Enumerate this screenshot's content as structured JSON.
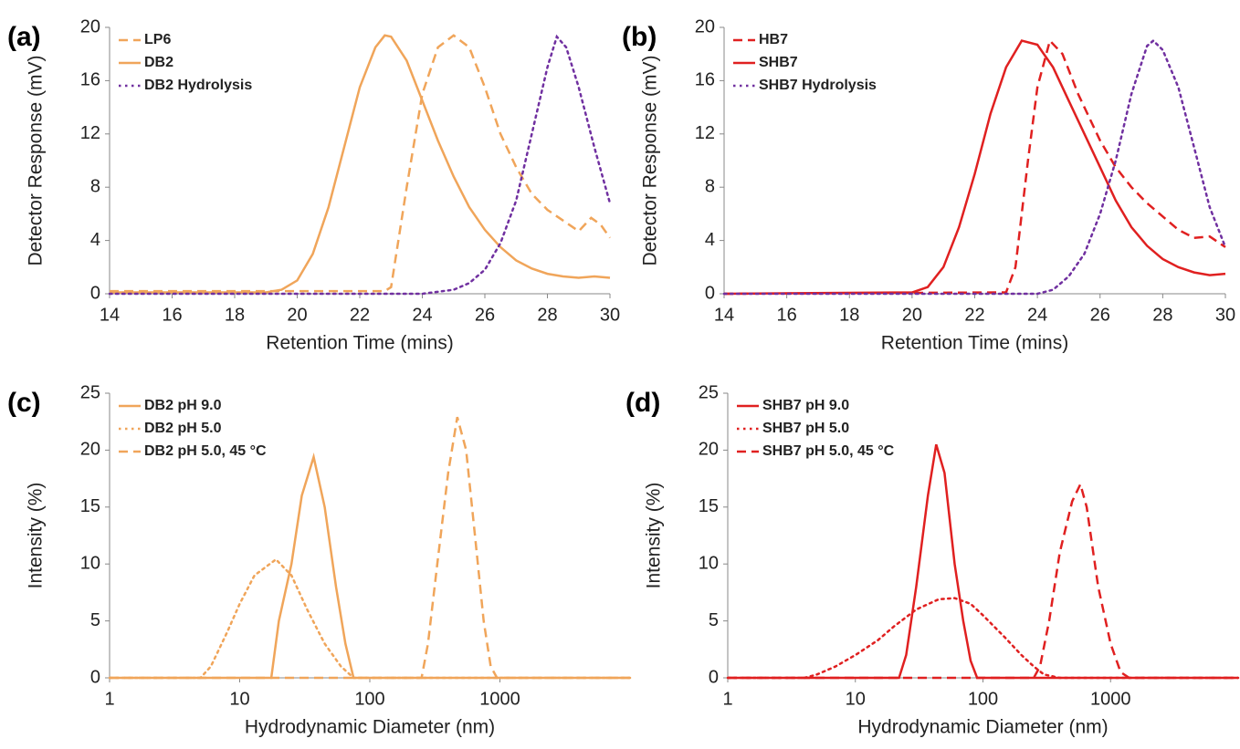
{
  "chart_data": [
    {
      "type": "line",
      "panel_label": "(a)",
      "x_label": "Retention Time (mins)",
      "y_label": "Detector Response (mV)",
      "xlim": [
        14,
        30
      ],
      "xticks": [
        14,
        16,
        18,
        20,
        22,
        24,
        26,
        28,
        30
      ],
      "ylim": [
        0,
        20
      ],
      "yticks": [
        0,
        4,
        8,
        12,
        16,
        20
      ],
      "log_x": false,
      "legend": "upper left",
      "series": [
        {
          "name": "LP6",
          "color": "#F0A55A",
          "linestyle": "dashed",
          "x": [
            14,
            22.8,
            23,
            23.5,
            24,
            24.5,
            25,
            25.5,
            26,
            26.5,
            27,
            27.5,
            28,
            28.5,
            29,
            29.4,
            29.7,
            30
          ],
          "values": [
            0.2,
            0.2,
            0.5,
            8,
            15,
            18.5,
            19.4,
            18.5,
            15.5,
            12,
            9.5,
            7.5,
            6.3,
            5.5,
            4.7,
            5.7,
            5.2,
            4.2
          ]
        },
        {
          "name": "DB2",
          "color": "#F0A55A",
          "linestyle": "solid",
          "x": [
            14,
            19,
            19.5,
            20,
            20.5,
            21,
            21.5,
            22,
            22.5,
            22.8,
            23,
            23.5,
            24,
            24.5,
            25,
            25.5,
            26,
            26.5,
            27,
            27.5,
            28,
            28.5,
            29,
            29.5,
            30
          ],
          "values": [
            0.1,
            0.1,
            0.3,
            1,
            3,
            6.5,
            11,
            15.5,
            18.5,
            19.4,
            19.3,
            17.5,
            14.5,
            11.5,
            8.8,
            6.5,
            4.8,
            3.5,
            2.5,
            1.9,
            1.5,
            1.3,
            1.2,
            1.3,
            1.2
          ]
        },
        {
          "name": "DB2 Hydrolysis",
          "color": "#7030A0",
          "linestyle": "dotted",
          "x": [
            14,
            24,
            25,
            25.5,
            26,
            26.5,
            27,
            27.5,
            28,
            28.3,
            28.6,
            29,
            29.5,
            30
          ],
          "values": [
            0,
            0,
            0.3,
            0.8,
            1.8,
            3.8,
            7,
            12,
            17,
            19.3,
            18.5,
            15.5,
            11,
            6.8
          ]
        }
      ]
    },
    {
      "type": "line",
      "panel_label": "(b)",
      "x_label": "Retention Time (mins)",
      "y_label": "Detector Response (mV)",
      "xlim": [
        14,
        30
      ],
      "xticks": [
        14,
        16,
        18,
        20,
        22,
        24,
        26,
        28,
        30
      ],
      "ylim": [
        0,
        20
      ],
      "yticks": [
        0,
        4,
        8,
        12,
        16,
        20
      ],
      "log_x": false,
      "legend": "upper left",
      "series": [
        {
          "name": "HB7",
          "color": "#E02020",
          "linestyle": "dashed",
          "x": [
            14,
            23,
            23.3,
            23.7,
            24,
            24.4,
            24.8,
            25.3,
            26,
            26.5,
            27,
            27.5,
            28,
            28.5,
            29,
            29.5,
            30
          ],
          "values": [
            0,
            0.1,
            2,
            10,
            15.5,
            19,
            18,
            15,
            11.5,
            9.5,
            8,
            6.8,
            5.8,
            4.8,
            4.2,
            4.3,
            3.5
          ]
        },
        {
          "name": "SHB7",
          "color": "#E02020",
          "linestyle": "solid",
          "x": [
            14,
            20,
            20.5,
            21,
            21.5,
            22,
            22.5,
            23,
            23.5,
            24,
            24.5,
            25,
            25.5,
            26,
            26.5,
            27,
            27.5,
            28,
            28.5,
            29,
            29.5,
            30
          ],
          "values": [
            0,
            0.1,
            0.5,
            2,
            5,
            9,
            13.5,
            17,
            19,
            18.7,
            17,
            14.5,
            12,
            9.5,
            7,
            5,
            3.6,
            2.6,
            2,
            1.6,
            1.4,
            1.5
          ]
        },
        {
          "name": "SHB7 Hydrolysis",
          "color": "#7030A0",
          "linestyle": "dotted",
          "x": [
            14,
            24,
            24.5,
            25,
            25.5,
            26,
            26.5,
            27,
            27.5,
            27.7,
            28,
            28.5,
            29,
            29.5,
            30
          ],
          "values": [
            0,
            0,
            0.3,
            1.3,
            3,
            6,
            10,
            15,
            18.6,
            19,
            18.3,
            15.5,
            11,
            6.5,
            3.5
          ]
        }
      ]
    },
    {
      "type": "line",
      "panel_label": "(c)",
      "x_label": "Hydrodynamic Diameter (nm)",
      "y_label": "Intensity (%)",
      "xlim": [
        1,
        10000
      ],
      "xticks": [
        1,
        10,
        100,
        1000
      ],
      "ylim": [
        0,
        25
      ],
      "yticks": [
        0,
        5,
        10,
        15,
        20,
        25
      ],
      "log_x": true,
      "legend": "upper left",
      "series": [
        {
          "name": "DB2 pH 9.0",
          "color": "#F0A55A",
          "linestyle": "solid",
          "x": [
            1,
            17.5,
            20,
            25,
            30,
            37,
            45,
            55,
            65,
            75,
            10000
          ],
          "values": [
            0,
            0,
            5,
            10,
            16,
            19.4,
            15,
            8,
            3,
            0,
            0
          ]
        },
        {
          "name": "DB2 pH 5.0",
          "color": "#F0A55A",
          "linestyle": "dotted",
          "x": [
            1,
            5,
            6,
            8,
            10,
            13,
            19,
            25,
            33,
            45,
            60,
            75,
            10000
          ],
          "values": [
            0,
            0,
            1,
            4,
            6.5,
            9,
            10.4,
            9,
            6,
            3,
            1,
            0,
            0
          ]
        },
        {
          "name": "DB2 pH 5.0, 45 °C",
          "color": "#F0A55A",
          "linestyle": "dashed",
          "x": [
            1,
            250,
            280,
            330,
            400,
            470,
            550,
            650,
            750,
            850,
            950,
            10000
          ],
          "values": [
            0,
            0,
            3,
            10,
            18,
            22.9,
            20,
            12,
            5,
            1,
            0,
            0
          ]
        }
      ]
    },
    {
      "type": "line",
      "panel_label": "(d)",
      "x_label": "Hydrodynamic Diameter (nm)",
      "y_label": "Intensity (%)",
      "xlim": [
        1,
        10000
      ],
      "xticks": [
        1,
        10,
        100,
        1000
      ],
      "ylim": [
        0,
        25
      ],
      "yticks": [
        0,
        5,
        10,
        15,
        20,
        25
      ],
      "log_x": true,
      "legend": "upper left",
      "series": [
        {
          "name": "SHB7 pH 9.0",
          "color": "#E02020",
          "linestyle": "solid",
          "x": [
            1,
            22,
            25,
            30,
            37,
            43,
            50,
            60,
            70,
            80,
            90,
            10000
          ],
          "values": [
            0,
            0,
            2,
            8,
            16,
            20.5,
            18,
            10,
            5,
            1.5,
            0,
            0
          ]
        },
        {
          "name": "SHB7 pH 5.0",
          "color": "#E02020",
          "linestyle": "dotted",
          "x": [
            1,
            4,
            5,
            7,
            10,
            15,
            20,
            30,
            45,
            60,
            80,
            100,
            150,
            200,
            250,
            300,
            400,
            10000
          ],
          "values": [
            0,
            0,
            0.3,
            1,
            2,
            3.3,
            4.5,
            6,
            6.9,
            7,
            6.5,
            5.5,
            3.5,
            2,
            1,
            0.3,
            0,
            0
          ]
        },
        {
          "name": "SHB7 pH 5.0, 45 °C",
          "color": "#E02020",
          "linestyle": "dashed",
          "x": [
            1,
            250,
            280,
            330,
            400,
            500,
            580,
            650,
            800,
            1000,
            1200,
            1400,
            10000
          ],
          "values": [
            0,
            0,
            1,
            5,
            11,
            15.5,
            17,
            15,
            8,
            3,
            0.5,
            0,
            0
          ]
        }
      ]
    }
  ]
}
